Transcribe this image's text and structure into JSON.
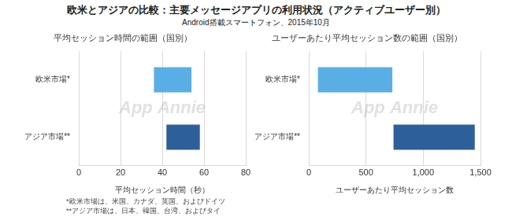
{
  "title": "欧米とアジアの比較：主要メッセージアプリの利用状況（アクティブユーザー別）",
  "subtitle": "Android搭載スマートフォン、2015年10月",
  "footnotes": [
    "*欧米市場は、米国、カナダ、英国、およびドイツ",
    "**アジア市場は、日本、韓国、台湾、およびタイ"
  ],
  "chart_data": [
    {
      "type": "bar",
      "orientation": "horizontal",
      "title": "平均セッション時間の範囲（国別）",
      "xlabel": "平均セッション時間（秒）",
      "categories": [
        "欧米市場*",
        "アジア市場**"
      ],
      "values": [
        [
          36,
          54
        ],
        [
          42,
          58
        ]
      ],
      "colors": [
        "#5aaee6",
        "#2d5f9a"
      ],
      "xlim": [
        0,
        80
      ],
      "xticks": [
        0,
        20,
        40,
        60,
        80
      ],
      "grid": true,
      "annotations": [
        "App Annie"
      ]
    },
    {
      "type": "bar",
      "orientation": "horizontal",
      "title": "ユーザーあたり平均セッション数の範囲（国別）",
      "xlabel": "ユーザーあたり平均セッション数",
      "categories": [
        "欧米市場*",
        "アジア市場**"
      ],
      "values": [
        [
          80,
          730
        ],
        [
          740,
          1450
        ]
      ],
      "colors": [
        "#5aaee6",
        "#2d5f9a"
      ],
      "xlim": [
        0,
        1500
      ],
      "xticks": [
        0,
        500,
        {
          "value": 1000,
          "label": "1,000"
        },
        {
          "value": 1500,
          "label": "1,500"
        }
      ],
      "grid": true,
      "annotations": [
        "App Annie"
      ]
    }
  ]
}
